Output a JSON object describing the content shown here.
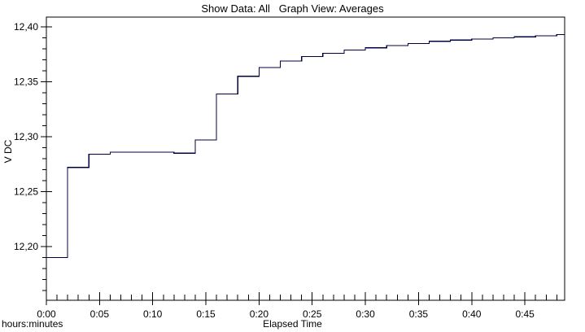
{
  "header": {
    "title": "Show Data: All   Graph View: Averages"
  },
  "axes": {
    "y_label": "V DC",
    "x_label": "Elapsed Time",
    "x_unit_note": "hours:minutes"
  },
  "colors": {
    "line": "#000040",
    "axis": "#000000",
    "background": "#ffffff",
    "text": "#000000"
  },
  "chart_data": {
    "type": "line",
    "step_mode": "step-after",
    "title": "Show Data: All   Graph View: Averages",
    "xlabel": "Elapsed Time",
    "x_units": "hours:minutes",
    "ylabel": "V DC",
    "grid": false,
    "legend": "none",
    "xlim_minutes": [
      0,
      48.74
    ],
    "ylim_volts": [
      12.151,
      12.409
    ],
    "x_minutes": [
      0,
      2,
      4,
      6,
      8,
      10,
      12,
      14,
      16,
      18,
      20,
      22,
      24,
      26,
      28,
      30,
      32,
      34,
      36,
      38,
      40,
      42,
      44,
      46,
      48
    ],
    "volts": [
      12.19,
      12.272,
      12.284,
      12.286,
      12.286,
      12.286,
      12.285,
      12.297,
      12.339,
      12.355,
      12.363,
      12.369,
      12.373,
      12.376,
      12.379,
      12.381,
      12.383,
      12.385,
      12.387,
      12.388,
      12.389,
      12.39,
      12.391,
      12.392,
      12.393
    ],
    "line_extends_to_minutes": 48.74,
    "x_major_ticks": [
      {
        "minutes": 0,
        "label": "0:00"
      },
      {
        "minutes": 5,
        "label": "0:05"
      },
      {
        "minutes": 10,
        "label": "0:10"
      },
      {
        "minutes": 15,
        "label": "0:15"
      },
      {
        "minutes": 20,
        "label": "0:20"
      },
      {
        "minutes": 25,
        "label": "0:25"
      },
      {
        "minutes": 30,
        "label": "0:30"
      },
      {
        "minutes": 35,
        "label": "0:35"
      },
      {
        "minutes": 40,
        "label": "0:40"
      },
      {
        "minutes": 45,
        "label": "0:45"
      }
    ],
    "x_minor_tick_every_minutes": 1,
    "x_minor_tick_range_minutes": [
      1,
      48
    ],
    "y_major_ticks": [
      {
        "volts": 12.2,
        "label": "12,20"
      },
      {
        "volts": 12.25,
        "label": "12,25"
      },
      {
        "volts": 12.3,
        "label": "12,30"
      },
      {
        "volts": 12.35,
        "label": "12,35"
      },
      {
        "volts": 12.4,
        "label": "12,40"
      }
    ],
    "y_minor_tick_every_volts": 0.01,
    "y_minor_tick_range_volts": [
      12.16,
      12.4
    ]
  }
}
